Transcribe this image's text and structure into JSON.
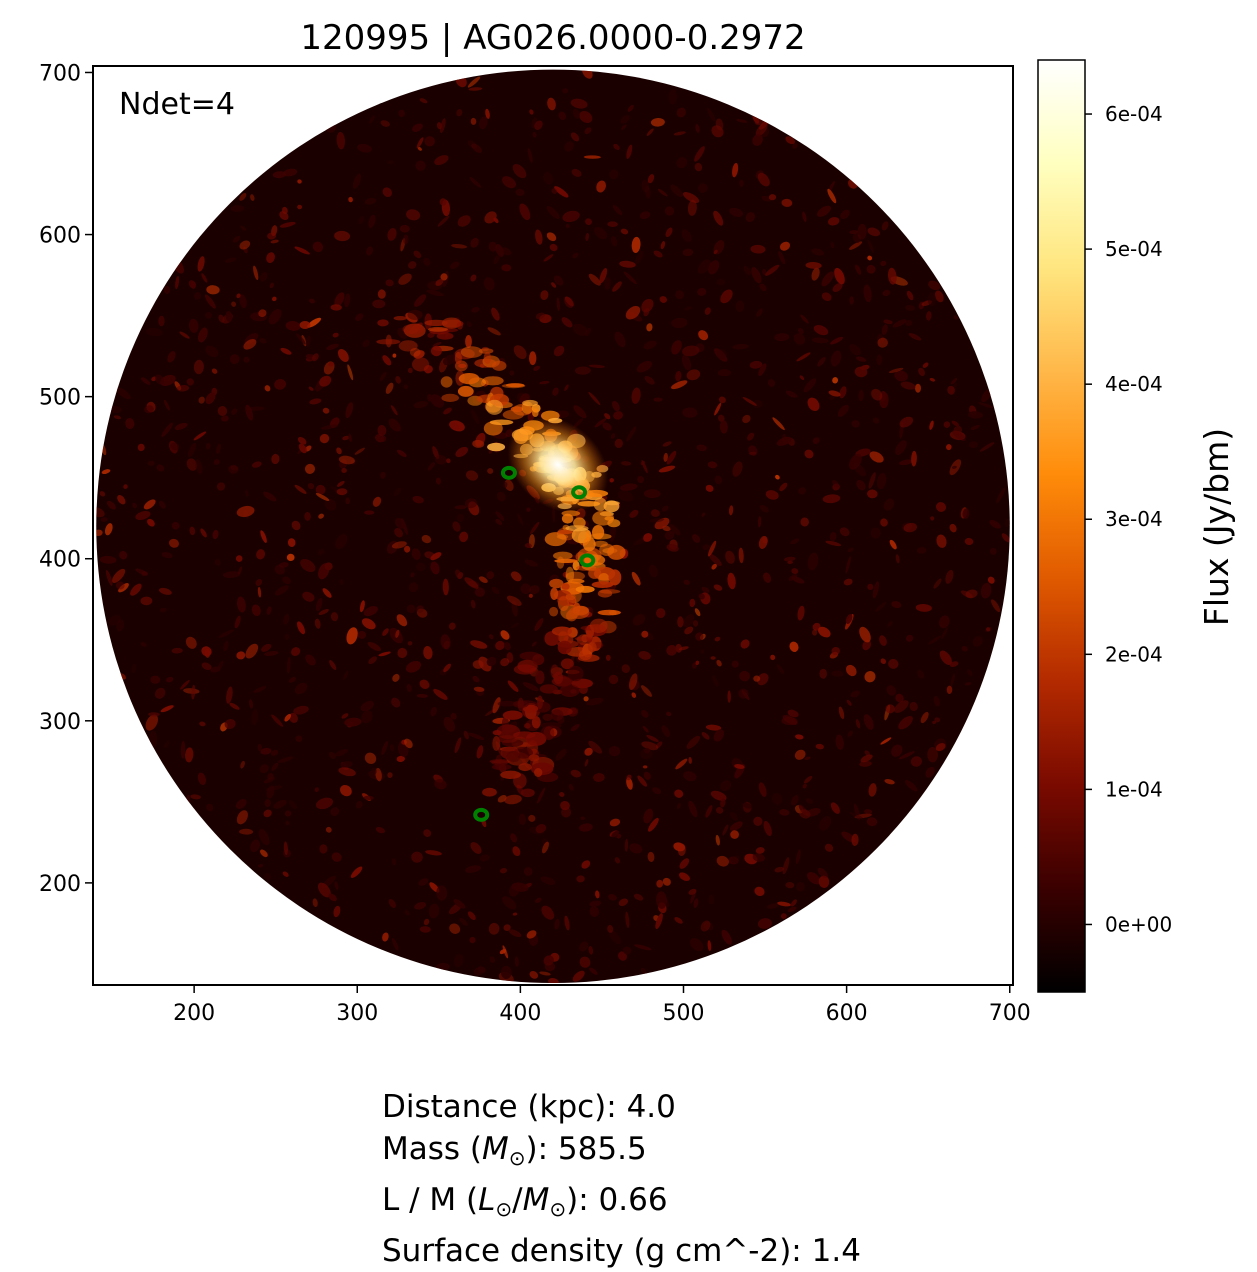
{
  "title": "120995 | AG026.0000-0.2972",
  "annotation": "Ndet=4",
  "colorbar": {
    "label": "Flux (Jy/bm)",
    "range": [
      -5e-05,
      0.00064
    ],
    "ticks": [
      0,
      0.0001,
      0.0002,
      0.0003,
      0.0004,
      0.0005,
      0.0006
    ],
    "tick_labels": [
      "0e+00",
      "1e-04",
      "2e-04",
      "3e-04",
      "4e-04",
      "5e-04",
      "6e-04"
    ],
    "colormap": [
      "#000000",
      "#3a0000",
      "#7a0a00",
      "#b32a00",
      "#e05a00",
      "#ff8c0a",
      "#ffb84a",
      "#ffe680",
      "#ffffc0",
      "#ffffff"
    ]
  },
  "info": {
    "distance_label": "Distance (kpc): ",
    "distance_value": "4.0",
    "mass_label_pre": "Mass (",
    "mass_symbol": "M",
    "mass_label_post": "): ",
    "mass_value": "585.5",
    "lm_label_pre": "L / M (",
    "lm_L": "L",
    "lm_slash": "/",
    "lm_M": "M",
    "lm_label_post": "): ",
    "lm_value": "0.66",
    "sigma_label": "Surface density (g cm^-2): ",
    "sigma_value": "1.4",
    "sun_symbol": "⊙"
  },
  "chart_data": {
    "type": "heatmap",
    "title": "120995 | AG026.0000-0.2972",
    "xlabel": "",
    "ylabel": "",
    "xlim": [
      138,
      702
    ],
    "ylim": [
      137,
      704
    ],
    "xticks": [
      200,
      300,
      400,
      500,
      600,
      700
    ],
    "yticks": [
      200,
      300,
      400,
      500,
      600,
      700
    ],
    "grid": false,
    "field": {
      "shape": "circle",
      "center": [
        420,
        420
      ],
      "radius": 280
    },
    "filament_ridge": [
      [
        330,
        545
      ],
      [
        365,
        520
      ],
      [
        395,
        490
      ],
      [
        420,
        462
      ],
      [
        438,
        440
      ],
      [
        442,
        410
      ],
      [
        440,
        380
      ],
      [
        432,
        350
      ],
      [
        420,
        320
      ],
      [
        405,
        290
      ],
      [
        395,
        262
      ]
    ],
    "bright_peak": [
      423,
      458
    ],
    "peak_flux": 0.00064,
    "detections": [
      {
        "x": 393,
        "y": 453
      },
      {
        "x": 436,
        "y": 441
      },
      {
        "x": 441,
        "y": 399
      },
      {
        "x": 376,
        "y": 242
      }
    ],
    "detection_count": 4,
    "marker_color": "#008000"
  }
}
